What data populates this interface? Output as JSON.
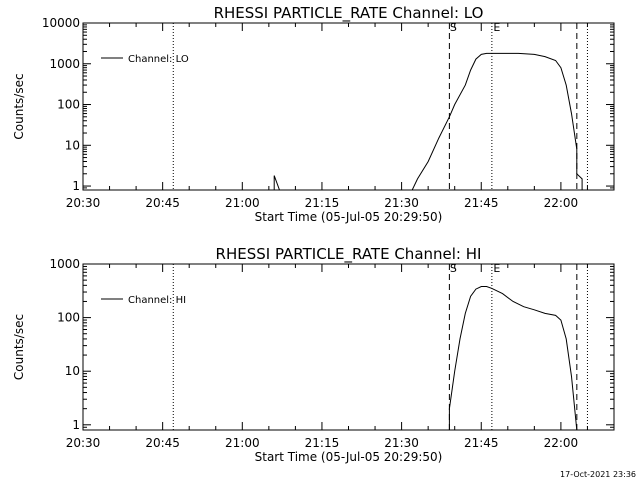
{
  "footer": "17-Oct-2021 23:36",
  "chart_data": [
    {
      "type": "line",
      "title": "RHESSI PARTICLE_RATE Channel: LO",
      "xlabel": "Start Time (05-Jul-05 20:29:50)",
      "ylabel": "Counts/sec",
      "yscale": "log",
      "ylim": [
        0.8,
        10000
      ],
      "yticks": [
        1,
        10,
        100,
        1000,
        10000
      ],
      "ytick_labels": [
        "1",
        "10",
        "100",
        "1000",
        "10000"
      ],
      "xlim": [
        "20:30",
        "22:10"
      ],
      "xticks": [
        "20:30",
        "20:45",
        "21:00",
        "21:15",
        "21:30",
        "21:45",
        "22:00"
      ],
      "legend": {
        "position": "top-left",
        "label": "Channel: LO"
      },
      "markers": [
        {
          "label": "S",
          "x": "21:39",
          "style": "dashed"
        },
        {
          "label": "E",
          "x": "21:47",
          "style": "dotted"
        }
      ],
      "vlines": [
        {
          "x": "20:47",
          "style": "dotted"
        },
        {
          "x": "22:03",
          "style": "dashed"
        },
        {
          "x": "22:05",
          "style": "dotted"
        }
      ],
      "series": [
        {
          "name": "Channel: LO",
          "x": [
            "21:06",
            "21:06",
            "21:07",
            "21:32",
            "21:33",
            "21:35",
            "21:37",
            "21:39",
            "21:40",
            "21:42",
            "21:43",
            "21:44",
            "21:45",
            "21:46",
            "21:47",
            "21:49",
            "21:52",
            "21:55",
            "21:57",
            "21:59",
            "22:00",
            "22:01",
            "22:02",
            "22:03",
            "22:03",
            "22:04",
            "22:04"
          ],
          "y": [
            0.8,
            1.8,
            0.8,
            0.8,
            1.5,
            4,
            15,
            50,
            100,
            300,
            700,
            1300,
            1700,
            1800,
            1800,
            1800,
            1800,
            1700,
            1500,
            1200,
            800,
            300,
            60,
            8,
            2,
            1.5,
            0.8
          ]
        }
      ]
    },
    {
      "type": "line",
      "title": "RHESSI PARTICLE_RATE Channel: HI",
      "xlabel": "Start Time (05-Jul-05 20:29:50)",
      "ylabel": "Counts/sec",
      "yscale": "log",
      "ylim": [
        0.8,
        1000
      ],
      "yticks": [
        1,
        10,
        100,
        1000
      ],
      "ytick_labels": [
        "1",
        "10",
        "100",
        "1000"
      ],
      "xlim": [
        "20:30",
        "22:10"
      ],
      "xticks": [
        "20:30",
        "20:45",
        "21:00",
        "21:15",
        "21:30",
        "21:45",
        "22:00"
      ],
      "legend": {
        "position": "top-left",
        "label": "Channel: HI"
      },
      "markers": [
        {
          "label": "S",
          "x": "21:39",
          "style": "dashed"
        },
        {
          "label": "E",
          "x": "21:47",
          "style": "dotted"
        }
      ],
      "vlines": [
        {
          "x": "20:47",
          "style": "dotted"
        },
        {
          "x": "22:03",
          "style": "dashed"
        },
        {
          "x": "22:05",
          "style": "dotted"
        }
      ],
      "series": [
        {
          "name": "Channel: HI",
          "x": [
            "21:39",
            "21:39",
            "21:40",
            "21:41",
            "21:42",
            "21:43",
            "21:44",
            "21:45",
            "21:46",
            "21:47",
            "21:49",
            "21:51",
            "21:53",
            "21:55",
            "21:57",
            "21:59",
            "22:00",
            "22:01",
            "22:02",
            "22:03"
          ],
          "y": [
            0.8,
            2,
            10,
            40,
            120,
            250,
            340,
            380,
            380,
            350,
            280,
            200,
            160,
            140,
            120,
            110,
            90,
            40,
            8,
            0.8
          ]
        }
      ]
    }
  ]
}
